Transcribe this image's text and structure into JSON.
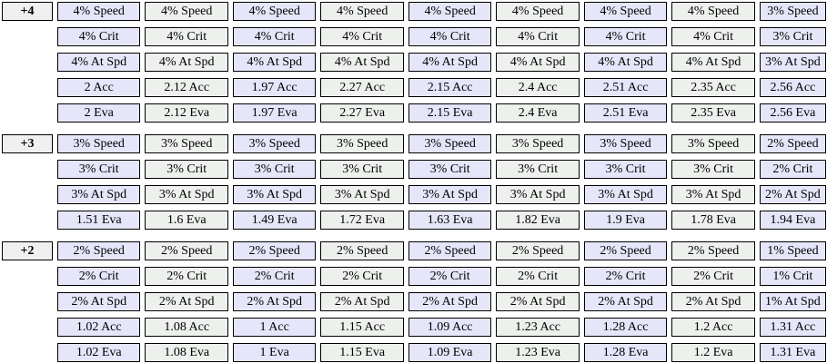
{
  "table": {
    "colors": {
      "odd_column_bg": "#E6E6FA",
      "even_column_bg": "#EDF0ED",
      "label_cell_bg": "#F0F0F0",
      "border": "#000000",
      "page_bg": "#FFFFFF",
      "text": "#000000"
    },
    "groups": [
      {
        "label": "+4",
        "rows": [
          {
            "name": "speed",
            "cells": [
              "4% Speed",
              "4% Speed",
              "4% Speed",
              "4% Speed",
              "4% Speed",
              "4% Speed",
              "4% Speed",
              "4% Speed",
              "3% Speed"
            ]
          },
          {
            "name": "crit",
            "cells": [
              "4% Crit",
              "4% Crit",
              "4% Crit",
              "4% Crit",
              "4% Crit",
              "4% Crit",
              "4% Crit",
              "4% Crit",
              "3% Crit"
            ]
          },
          {
            "name": "attack-speed",
            "cells": [
              "4% At Spd",
              "4% At Spd",
              "4% At Spd",
              "4% At Spd",
              "4% At Spd",
              "4% At Spd",
              "4% At Spd",
              "4% At Spd",
              "3% At Spd"
            ]
          },
          {
            "name": "accuracy",
            "cells": [
              "2 Acc",
              "2.12 Acc",
              "1.97 Acc",
              "2.27 Acc",
              "2.15 Acc",
              "2.4 Acc",
              "2.51 Acc",
              "2.35 Acc",
              "2.56 Acc"
            ]
          },
          {
            "name": "evasion",
            "cells": [
              "2 Eva",
              "2.12 Eva",
              "1.97 Eva",
              "2.27 Eva",
              "2.15 Eva",
              "2.4 Eva",
              "2.51 Eva",
              "2.35 Eva",
              "2.56 Eva"
            ]
          }
        ]
      },
      {
        "label": "+3",
        "rows": [
          {
            "name": "speed",
            "cells": [
              "3% Speed",
              "3% Speed",
              "3% Speed",
              "3% Speed",
              "3% Speed",
              "3% Speed",
              "3% Speed",
              "3% Speed",
              "2% Speed"
            ]
          },
          {
            "name": "crit",
            "cells": [
              "3% Crit",
              "3% Crit",
              "3% Crit",
              "3% Crit",
              "3% Crit",
              "3% Crit",
              "3% Crit",
              "3% Crit",
              "2% Crit"
            ]
          },
          {
            "name": "attack-speed",
            "cells": [
              "3% At Spd",
              "3% At Spd",
              "3% At Spd",
              "3% At Spd",
              "3% At Spd",
              "3% At Spd",
              "3% At Spd",
              "3% At Spd",
              "2% At Spd"
            ]
          },
          {
            "name": "evasion",
            "cells": [
              "1.51 Eva",
              "1.6 Eva",
              "1.49 Eva",
              "1.72 Eva",
              "1.63 Eva",
              "1.82 Eva",
              "1.9 Eva",
              "1.78 Eva",
              "1.94 Eva"
            ]
          }
        ]
      },
      {
        "label": "+2",
        "rows": [
          {
            "name": "speed",
            "cells": [
              "2% Speed",
              "2% Speed",
              "2% Speed",
              "2% Speed",
              "2% Speed",
              "2% Speed",
              "2% Speed",
              "2% Speed",
              "1% Speed"
            ]
          },
          {
            "name": "crit",
            "cells": [
              "2% Crit",
              "2% Crit",
              "2% Crit",
              "2% Crit",
              "2% Crit",
              "2% Crit",
              "2% Crit",
              "2% Crit",
              "1% Crit"
            ]
          },
          {
            "name": "attack-speed",
            "cells": [
              "2% At Spd",
              "2% At Spd",
              "2% At Spd",
              "2% At Spd",
              "2% At Spd",
              "2% At Spd",
              "2% At Spd",
              "2% At Spd",
              "1% At Spd"
            ]
          },
          {
            "name": "accuracy",
            "cells": [
              "1.02 Acc",
              "1.08 Acc",
              "1 Acc",
              "1.15 Acc",
              "1.09 Acc",
              "1.23 Acc",
              "1.28 Acc",
              "1.2 Acc",
              "1.31 Acc"
            ]
          },
          {
            "name": "evasion",
            "cells": [
              "1.02 Eva",
              "1.08 Eva",
              "1 Eva",
              "1.15 Eva",
              "1.09 Eva",
              "1.23 Eva",
              "1.28 Eva",
              "1.2 Eva",
              "1.31 Eva"
            ]
          }
        ]
      }
    ]
  }
}
